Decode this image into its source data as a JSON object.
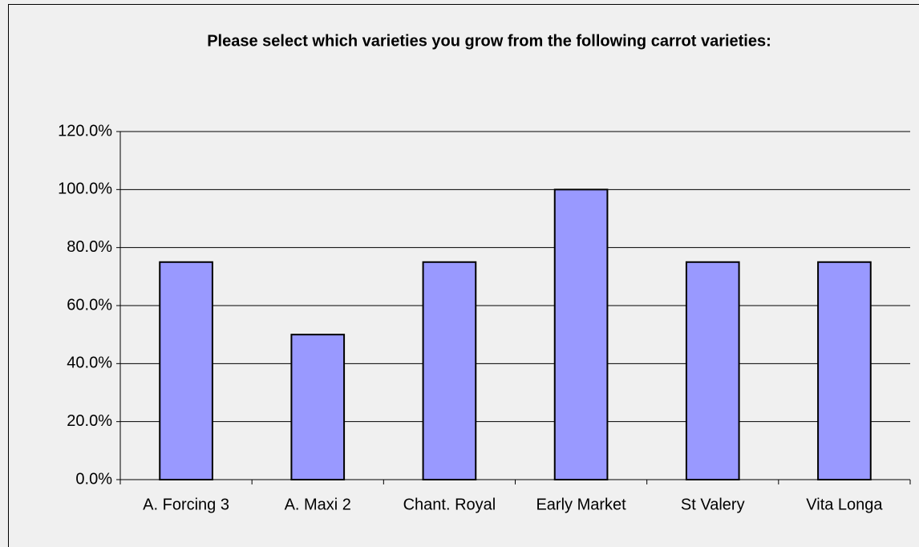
{
  "chart_data": {
    "type": "bar",
    "title": "Please select which varieties you grow from the following carrot varieties:",
    "categories": [
      "A. Forcing 3",
      "A. Maxi 2",
      "Chant. Royal",
      "Early Market",
      "St Valery",
      "Vita Longa"
    ],
    "values": [
      75,
      50,
      75,
      100,
      75,
      75
    ],
    "color": "#9999ff",
    "ylim": [
      0,
      120
    ],
    "yticks": [
      {
        "value": 0,
        "label": "0.0%"
      },
      {
        "value": 20,
        "label": "20.0%"
      },
      {
        "value": 40,
        "label": "40.0%"
      },
      {
        "value": 60,
        "label": "60.0%"
      },
      {
        "value": 80,
        "label": "80.0%"
      },
      {
        "value": 100,
        "label": "100.0%"
      },
      {
        "value": 120,
        "label": "120.0%"
      }
    ],
    "grid": true
  }
}
